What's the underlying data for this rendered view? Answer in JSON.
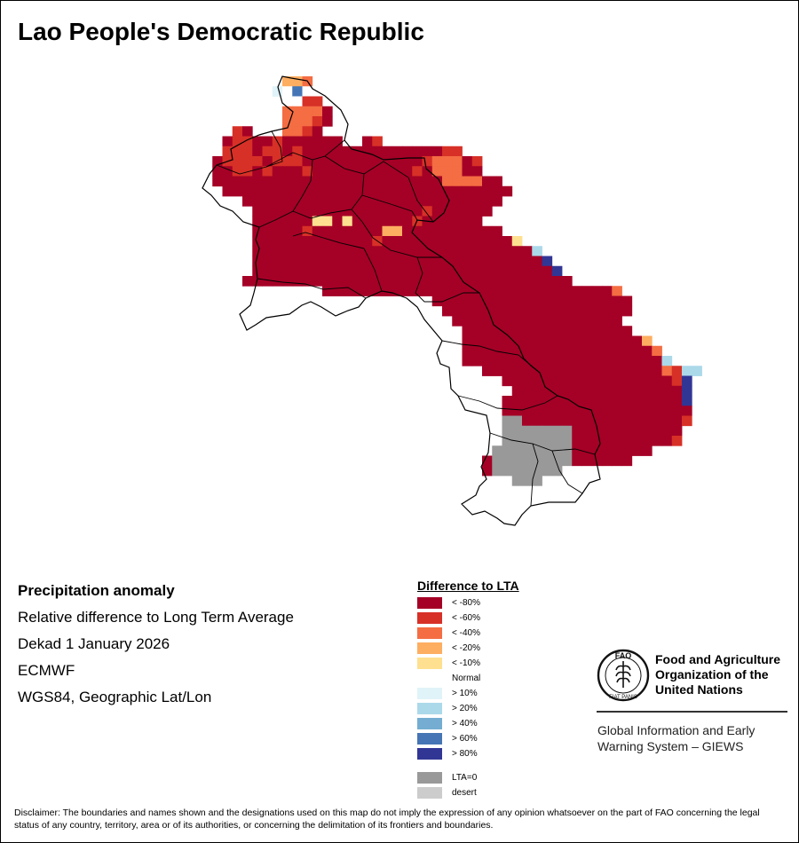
{
  "title": "Lao People's Democratic Republic",
  "info": {
    "heading": "Precipitation anomaly",
    "line1": "Relative difference to Long Term Average",
    "line2": "Dekad 1 January 2026",
    "line3": "ECMWF",
    "line4": "WGS84, Geographic Lat/Lon"
  },
  "legend": {
    "title": "Difference to LTA",
    "classes": [
      {
        "label": "< -80%",
        "color": "#a50026"
      },
      {
        "label": "< -60%",
        "color": "#d73027"
      },
      {
        "label": "< -40%",
        "color": "#f46d43"
      },
      {
        "label": "< -20%",
        "color": "#fdae61"
      },
      {
        "label": "< -10%",
        "color": "#fee090"
      },
      {
        "label": "Normal",
        "color": "#ffffff"
      },
      {
        "label": "> 10%",
        "color": "#e0f3f8"
      },
      {
        "label": "> 20%",
        "color": "#abd9e9"
      },
      {
        "label": "> 40%",
        "color": "#74add1"
      },
      {
        "label": "> 60%",
        "color": "#4575b4"
      },
      {
        "label": "> 80%",
        "color": "#313695"
      }
    ],
    "extra": [
      {
        "label": "LTA=0",
        "color": "#999999"
      },
      {
        "label": "desert",
        "color": "#cccccc"
      }
    ]
  },
  "org": {
    "name_line1": "Food and Agriculture",
    "name_line2": "Organization of the",
    "name_line3": "United Nations",
    "system_line1": "Global Information and Early",
    "system_line2": "Warning System – GIEWS",
    "logo_text": "FAO",
    "logo_motto": "FIAT PANIS"
  },
  "disclaimer": "Disclaimer: The boundaries and names shown and the designations used on this map do not imply the expression of any opinion whatsoever on the part of FAO concerning the legal status of any country, territory, area or of its authorities, or concerning the delimitation of its frontiers and boundaries.",
  "map_data": {
    "cell_size_deg": 0.1,
    "palette": {
      "a": "#a50026",
      "b": "#d73027",
      "c": "#f46d43",
      "d": "#fdae61",
      "e": "#fee090",
      "w": "#ffffff",
      "f": "#e0f3f8",
      "g": "#abd9e9",
      "h": "#74add1",
      "i": "#4575b4",
      "j": "#313695",
      "x": "#999999"
    },
    "anomaly_rows": [
      {
        "row": 0,
        "col": 12,
        "classes": "ddc"
      },
      {
        "row": 1,
        "col": 11,
        "classes": "fwiw"
      },
      {
        "row": 2,
        "col": 12,
        "classes": "wwbb"
      },
      {
        "row": 3,
        "col": 12,
        "classes": "cccca"
      },
      {
        "row": 4,
        "col": 12,
        "classes": "cccba"
      },
      {
        "row": 5,
        "col": 7,
        "classes": "ba...ccba"
      },
      {
        "row": 6,
        "col": 6,
        "classes": "abbaabaaaaaa..ab"
      },
      {
        "row": 7,
        "col": 6,
        "classes": "bbbabbabaaaaaaaaaaaaaabb"
      },
      {
        "row": 8,
        "col": 5,
        "classes": "abbbbabbbaaaaaaaaaaaabcccab"
      },
      {
        "row": 9,
        "col": 5,
        "classes": "aabbabaaabaaaaaaaaaabacccaa"
      },
      {
        "row": 10,
        "col": 5,
        "classes": "aaaaaaaaaaaaaaaaaaaaaaaccccaa"
      },
      {
        "row": 11,
        "col": 6,
        "classes": "aaaaaaaaaaaaaaaaaaaaaaaaaaaaa"
      },
      {
        "row": 12,
        "col": 8,
        "classes": "aaaaaaaaaaaaaaaaaaaaaaaaaa"
      },
      {
        "row": 13,
        "col": 9,
        "classes": "aaaaaaaaaaaaaaaaabaaaaaa"
      },
      {
        "row": 14,
        "col": 9,
        "classes": "aaaaaaeeaeaaaaaabaaaaaa"
      },
      {
        "row": 15,
        "col": 9,
        "classes": "aaaaabaaaaaaaddaaaaaaaaaa"
      },
      {
        "row": 16,
        "col": 9,
        "classes": "aaaaaaaaaaaabaaaaaaaaaaaaae"
      },
      {
        "row": 17,
        "col": 9,
        "classes": "aaaaaaaaaaaaaaaaaaaaaaaaaaaag"
      },
      {
        "row": 18,
        "col": 9,
        "classes": "aaaaaaaaaaaaaaaaaaaaaaaaaaaaaj"
      },
      {
        "row": 19,
        "col": 9,
        "classes": "aaaaaaaaaaaaaaaaaaaaaaaaaaaaaaj"
      },
      {
        "row": 20,
        "col": 8,
        "classes": "aaaaaaaaaaaaaaaaaaaaaaaaaaaaaaaaa"
      },
      {
        "row": 21,
        "col": 16,
        "classes": "aaaaaaaaaaaaaaaaaaaaaaaaaaaaac"
      },
      {
        "row": 22,
        "col": 27,
        "classes": "aaaaaaaaaaaaaaaaaaaa"
      },
      {
        "row": 23,
        "col": 28,
        "classes": "aaaaaaaaaaaaaaaaaaa"
      },
      {
        "row": 24,
        "col": 29,
        "classes": "aaaaaaaaaaaaaaaaa"
      },
      {
        "row": 25,
        "col": 30,
        "classes": "aaaaaaaaaaaaaaaaa"
      },
      {
        "row": 26,
        "col": 30,
        "classes": "aaaaaaaaaaaaaaaaaad"
      },
      {
        "row": 27,
        "col": 30,
        "classes": "aaaaaaaaaaaaaaaaaaac"
      },
      {
        "row": 28,
        "col": 30,
        "classes": "aaaaaaaaaaaaaaaaaaaag"
      },
      {
        "row": 29,
        "col": 32,
        "classes": "aaaaaaaaaaaaaaaaaacbgg"
      },
      {
        "row": 30,
        "col": 34,
        "classes": "aaaaaaaaaaaaaaaaabj"
      },
      {
        "row": 31,
        "col": 35,
        "classes": "aaaaaaaaaaaaaaaaaj"
      },
      {
        "row": 32,
        "col": 34,
        "classes": "aaaaaaaaaaaaaaaaaaj"
      },
      {
        "row": 33,
        "col": 34,
        "classes": "aaaaaaaaaaaaaaaaaaa"
      },
      {
        "row": 34,
        "col": 34,
        "classes": "xxaaaaaaaaaaaaaaaab"
      },
      {
        "row": 35,
        "col": 34,
        "classes": "xxxxxxxaaaaaaaaaaa"
      },
      {
        "row": 36,
        "col": 34,
        "classes": "xxxxxxxaaaaaaaaaab"
      },
      {
        "row": 37,
        "col": 33,
        "classes": "xxxxxxxxaaaaaaaa"
      },
      {
        "row": 38,
        "col": 32,
        "classes": "axxxxxxxxaaaaaa"
      },
      {
        "row": 39,
        "col": 32,
        "classes": "axxxxxxx"
      },
      {
        "row": 40,
        "col": 35,
        "classes": "xxx"
      }
    ]
  }
}
